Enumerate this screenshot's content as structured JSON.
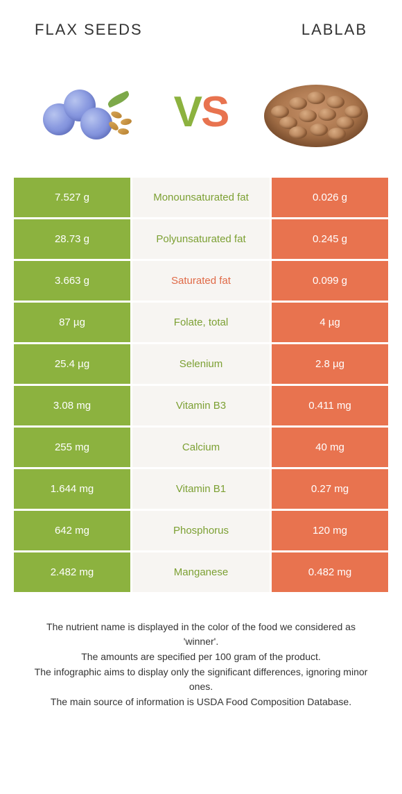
{
  "header": {
    "left_title": "FLAX SEEDS",
    "right_title": "LABLAB"
  },
  "vs": {
    "v": "V",
    "s": "S"
  },
  "colors": {
    "left_bg": "#8cb23f",
    "right_bg": "#e8734f",
    "mid_bg": "#f7f5f2",
    "left_winner_text": "#7ca033",
    "right_winner_text": "#e06a47",
    "cell_text": "#ffffff"
  },
  "table": {
    "rows": [
      {
        "left": "7.527 g",
        "label": "Monounsaturated fat",
        "right": "0.026 g",
        "winner": "left"
      },
      {
        "left": "28.73 g",
        "label": "Polyunsaturated fat",
        "right": "0.245 g",
        "winner": "left"
      },
      {
        "left": "3.663 g",
        "label": "Saturated fat",
        "right": "0.099 g",
        "winner": "right"
      },
      {
        "left": "87 µg",
        "label": "Folate, total",
        "right": "4 µg",
        "winner": "left"
      },
      {
        "left": "25.4 µg",
        "label": "Selenium",
        "right": "2.8 µg",
        "winner": "left"
      },
      {
        "left": "3.08 mg",
        "label": "Vitamin B3",
        "right": "0.411 mg",
        "winner": "left"
      },
      {
        "left": "255 mg",
        "label": "Calcium",
        "right": "40 mg",
        "winner": "left"
      },
      {
        "left": "1.644 mg",
        "label": "Vitamin B1",
        "right": "0.27 mg",
        "winner": "left"
      },
      {
        "left": "642 mg",
        "label": "Phosphorus",
        "right": "120 mg",
        "winner": "left"
      },
      {
        "left": "2.482 mg",
        "label": "Manganese",
        "right": "0.482 mg",
        "winner": "left"
      }
    ]
  },
  "footer": {
    "lines": [
      "The nutrient name is displayed in the color of the food we considered as 'winner'.",
      "The amounts are specified per 100 gram of the product.",
      "The infographic aims to display only the significant differences, ignoring minor ones.",
      "The main source of information is USDA Food Composition Database."
    ]
  }
}
